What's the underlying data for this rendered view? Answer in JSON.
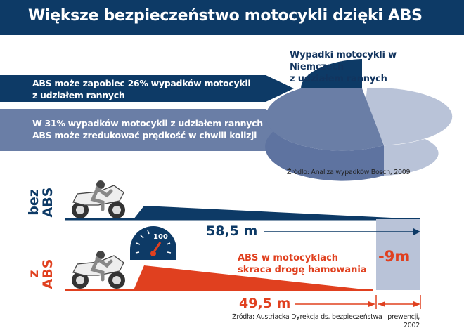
{
  "title": "Większe bezpieczeństwo motocykli dzięki ABS",
  "arrows": [
    {
      "line1": "ABS może zapobiec 26% wypadków motocykli",
      "line2": "z udziałem rannych"
    },
    {
      "line1": "W 31% wypadków motocykli z udziałem rannych",
      "line2": "ABS może zredukować prędkość w chwili kolizji"
    }
  ],
  "pie": {
    "title_lines": [
      "Wypadki motocykli w",
      "Niemczech",
      "z udziałem rannych"
    ],
    "slices": [
      26,
      31,
      43
    ],
    "colors": [
      "#0d3a66",
      "#6a7ea6",
      "#b9c3d8"
    ],
    "source": "Źródło: Analiza wypadków Bosch, 2009"
  },
  "braking": {
    "without_label": [
      "bez",
      "ABS"
    ],
    "with_label": [
      "z",
      "ABS"
    ],
    "without_distance": "58,5 m",
    "with_distance": "49,5 m",
    "difference": "-9m",
    "speed": "100",
    "message_lines": [
      "ABS w motocyklach",
      "skraca drogę hamowania"
    ],
    "source_lines": [
      "Źródła: Austriacka Dyrekcja ds. bezpieczeństwa i prewencji,",
      "2002"
    ],
    "colors": {
      "without": "#0d3a66",
      "with": "#e0401f",
      "gap": "#b9c3d8"
    }
  }
}
